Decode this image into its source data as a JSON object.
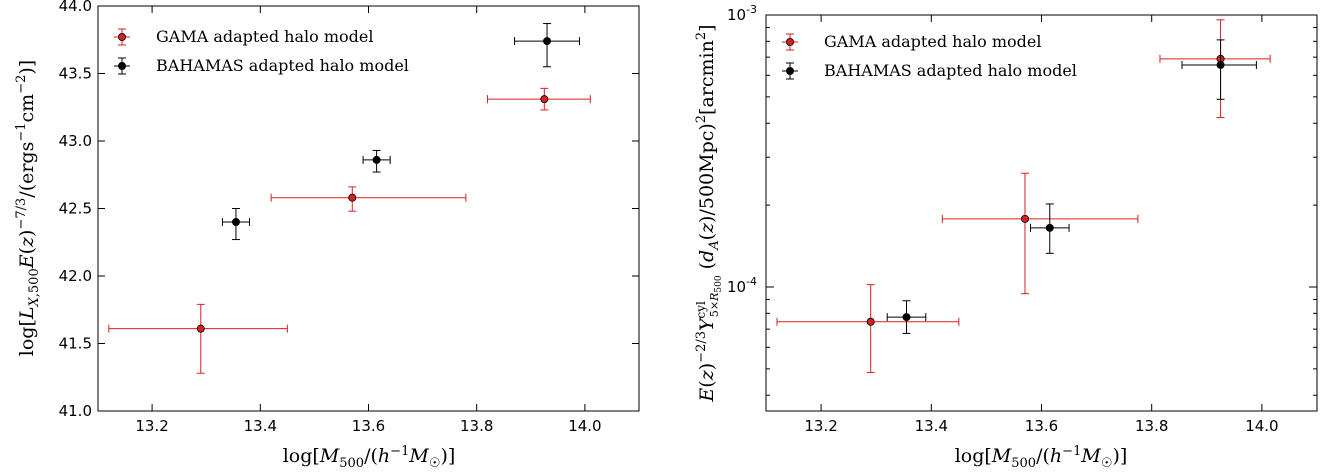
{
  "chart_data": [
    {
      "type": "scatter",
      "scale": "linear",
      "xlim": [
        13.1,
        14.1
      ],
      "ylim": [
        41.0,
        44.0
      ],
      "xticks": [
        "13.2",
        "13.4",
        "13.6",
        "13.8",
        "14.0"
      ],
      "yticks": [
        "41.0",
        "41.5",
        "42.0",
        "42.5",
        "43.0",
        "43.5",
        "44.0"
      ],
      "xlabel": "log[M500/(h⁻¹M☉)]",
      "ylabel": "log[LX,500E(z)⁻⁷ᐟ³/(ergs⁻¹cm⁻²)]",
      "legend_loc": "top-left",
      "series": [
        {
          "name": "GAMA adapted halo model",
          "color": "#d62020",
          "points": [
            {
              "x": 13.29,
              "y": 41.61,
              "xerr": [
                0.17,
                0.16
              ],
              "yerr": [
                0.33,
                0.18
              ]
            },
            {
              "x": 13.57,
              "y": 42.58,
              "xerr": [
                0.15,
                0.21
              ],
              "yerr": [
                0.1,
                0.08
              ]
            },
            {
              "x": 13.925,
              "y": 43.31,
              "xerr": [
                0.105,
                0.085
              ],
              "yerr": [
                0.08,
                0.08
              ]
            }
          ]
        },
        {
          "name": "BAHAMAS adapted halo model",
          "color": "#000000",
          "points": [
            {
              "x": 13.355,
              "y": 42.4,
              "xerr": [
                0.025,
                0.025
              ],
              "yerr": [
                0.13,
                0.1
              ]
            },
            {
              "x": 13.615,
              "y": 42.86,
              "xerr": [
                0.025,
                0.025
              ],
              "yerr": [
                0.09,
                0.07
              ]
            },
            {
              "x": 13.93,
              "y": 43.74,
              "xerr": [
                0.06,
                0.06
              ],
              "yerr": [
                0.19,
                0.13
              ]
            }
          ]
        }
      ]
    },
    {
      "type": "scatter",
      "scale": "log",
      "xlim": [
        13.1,
        14.1
      ],
      "ylim": [
        3.5e-05,
        0.001
      ],
      "xticks": [
        "13.2",
        "13.4",
        "13.6",
        "13.8",
        "14.0"
      ],
      "yticks_major": [
        {
          "value": 0.0001,
          "base": "10",
          "exp": "-4"
        },
        {
          "value": 0.001,
          "base": "10",
          "exp": "-3"
        }
      ],
      "xlabel": "log[M500/(h⁻¹M☉)]",
      "ylabel": "E(z)⁻²ᐟ³Y^cyl 5×R500 (dA(z)/500Mpc)²[arcmin²]",
      "legend_loc": "top-left",
      "series": [
        {
          "name": "GAMA adapted halo model",
          "color": "#d62020",
          "points": [
            {
              "x": 13.29,
              "y": 7.45e-05,
              "xerr": [
                0.17,
                0.16
              ],
              "ylo": 4.85e-05,
              "yhi": 0.000102
            },
            {
              "x": 13.57,
              "y": 0.000178,
              "xerr": [
                0.15,
                0.205
              ],
              "ylo": 9.45e-05,
              "yhi": 0.000262
            },
            {
              "x": 13.925,
              "y": 0.00069,
              "xerr": [
                0.11,
                0.09
              ],
              "ylo": 0.00042,
              "yhi": 0.00096
            }
          ]
        },
        {
          "name": "BAHAMAS adapted halo model",
          "color": "#000000",
          "points": [
            {
              "x": 13.355,
              "y": 7.75e-05,
              "xerr": [
                0.035,
                0.035
              ],
              "ylo": 6.75e-05,
              "yhi": 8.9e-05
            },
            {
              "x": 13.615,
              "y": 0.000165,
              "xerr": [
                0.035,
                0.035
              ],
              "ylo": 0.000133,
              "yhi": 0.000202
            },
            {
              "x": 13.925,
              "y": 0.000655,
              "xerr": [
                0.07,
                0.065
              ],
              "ylo": 0.00049,
              "yhi": 0.00081
            }
          ]
        }
      ]
    }
  ]
}
